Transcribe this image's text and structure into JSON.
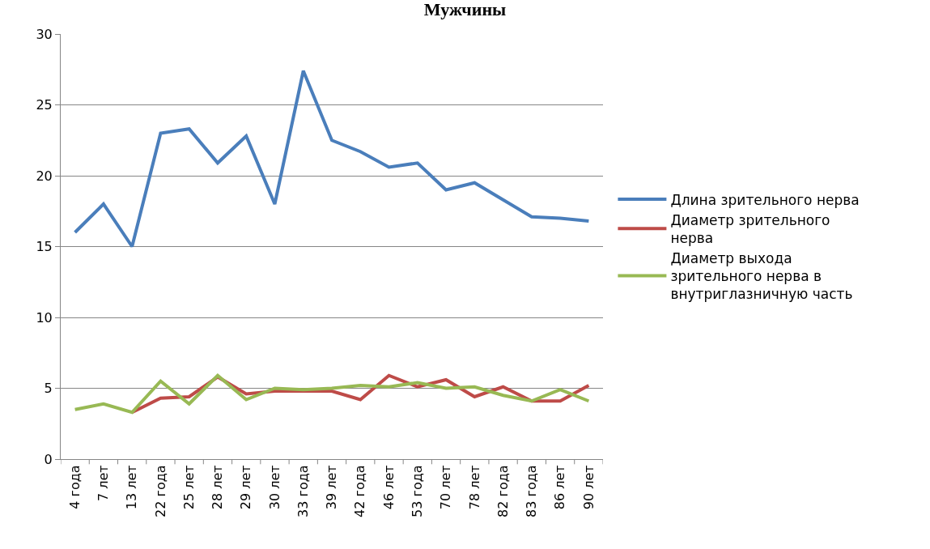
{
  "chart_data": {
    "type": "line",
    "title": "Мужчины",
    "categories": [
      "4 года",
      "7 лет",
      "13 лет",
      "22 года",
      "25 лет",
      "28 лет",
      "29 лет",
      "30 лет",
      "33 года",
      "39 лет",
      "42 года",
      "46 лет",
      "53 года",
      "70 лет",
      "78 лет",
      "82 года",
      "83 года",
      "86 лет",
      "90 лет"
    ],
    "series": [
      {
        "name": "Длина зрительного нерва",
        "color": "#4a7ebb",
        "values": [
          16,
          18,
          15,
          23,
          23.3,
          20.9,
          22.8,
          18,
          27.4,
          22.5,
          21.7,
          20.6,
          20.9,
          19,
          19.5,
          18.3,
          17.1,
          17,
          16.8
        ]
      },
      {
        "name": "Диаметр зрительного нерва",
        "color": "#be4b48",
        "values": [
          null,
          null,
          3.3,
          4.3,
          4.4,
          5.8,
          4.6,
          4.8,
          4.8,
          4.8,
          4.2,
          5.9,
          5.1,
          5.6,
          4.4,
          5.1,
          4.1,
          4.1,
          5.2
        ]
      },
      {
        "name": "Диаметр выхода зрительного нерва в внутриглазничную часть",
        "color": "#98b954",
        "values": [
          3.5,
          3.9,
          3.3,
          5.5,
          3.9,
          5.9,
          4.2,
          5.0,
          4.9,
          5.0,
          5.2,
          5.1,
          5.4,
          5.0,
          5.1,
          4.5,
          4.1,
          4.9,
          4.1
        ]
      }
    ],
    "ylim": [
      0,
      30
    ],
    "yticks": [
      0,
      5,
      10,
      15,
      20,
      25,
      30
    ],
    "grid": "y",
    "legend": "right",
    "marker": "none",
    "line_style": "solid"
  }
}
